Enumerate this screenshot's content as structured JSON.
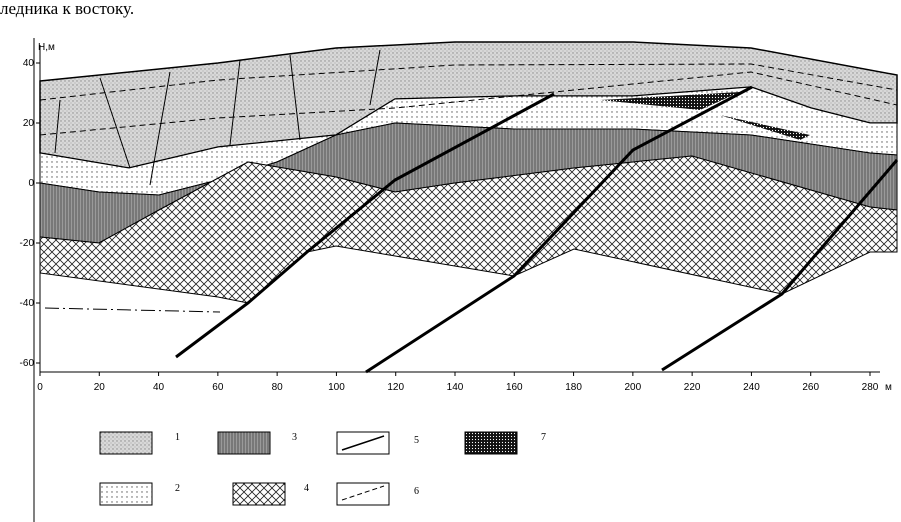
{
  "caption": "ледника к востоку.",
  "axis": {
    "y_label": "Н,м",
    "x_label": "м",
    "yticks": [
      40,
      20,
      0,
      -20,
      -40,
      -60
    ],
    "xticks": [
      0,
      20,
      40,
      60,
      80,
      100,
      120,
      140,
      160,
      180,
      200,
      220,
      240,
      260,
      280
    ]
  },
  "legend": [
    "1",
    "2",
    "3",
    "4",
    "5",
    "6",
    "7"
  ]
}
